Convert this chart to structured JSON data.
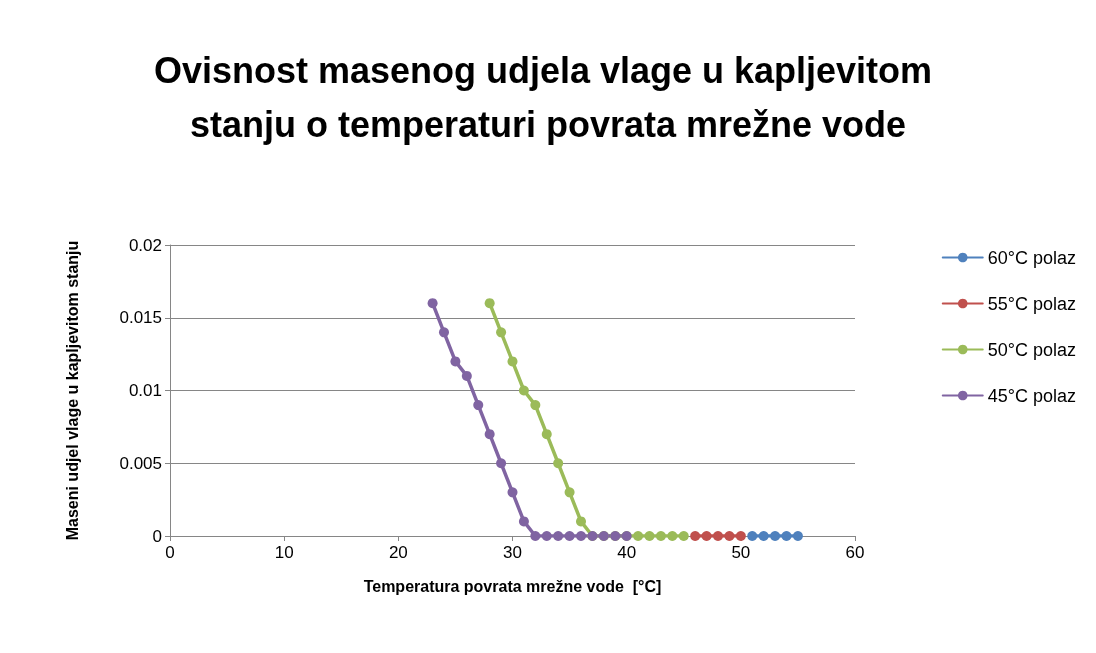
{
  "chart_data": {
    "type": "line",
    "title": "Ovisnost masenog udjela vlage u kapljevitom stanju o temperaturi povrata mrežne vode",
    "xlabel": "Temperatura povrata mrežne vode  [°C]",
    "ylabel": "Maseni udjel vlage u kapljevitom stanju",
    "xlim": [
      0,
      60
    ],
    "xticks": [
      0,
      10,
      20,
      30,
      40,
      50,
      60
    ],
    "ylim": [
      0,
      0.02
    ],
    "yticks": [
      0,
      0.005,
      0.01,
      0.015,
      0.02
    ],
    "grid": "y",
    "legend": "right",
    "marker": "circle",
    "line_style": "solid",
    "series": [
      {
        "name": "60°C polaz",
        "color": "#4f81bd",
        "x": [
          51,
          52,
          53,
          54,
          55
        ],
        "values": [
          0,
          0,
          0,
          0,
          0
        ]
      },
      {
        "name": "55°C polaz",
        "color": "#c0504d",
        "x": [
          46,
          47,
          48,
          49,
          50
        ],
        "values": [
          0,
          0,
          0,
          0,
          0
        ]
      },
      {
        "name": "50°C polaz",
        "color": "#9bbb59",
        "x": [
          28,
          29,
          30,
          31,
          32,
          33,
          34,
          35,
          36,
          37,
          38,
          39,
          40,
          41,
          42,
          43,
          44,
          45
        ],
        "values": [
          0.016,
          0.014,
          0.012,
          0.01,
          0.009,
          0.007,
          0.005,
          0.003,
          0.001,
          0,
          0,
          0,
          0,
          0,
          0,
          0,
          0,
          0
        ]
      },
      {
        "name": "45°C polaz",
        "color": "#8064a2",
        "x": [
          23,
          24,
          25,
          26,
          27,
          28,
          29,
          30,
          31,
          32,
          33,
          34,
          35,
          36,
          37,
          38,
          39,
          40
        ],
        "values": [
          0.016,
          0.014,
          0.012,
          0.011,
          0.009,
          0.007,
          0.005,
          0.003,
          0.001,
          0,
          0,
          0,
          0,
          0,
          0,
          0,
          0,
          0
        ]
      }
    ]
  }
}
